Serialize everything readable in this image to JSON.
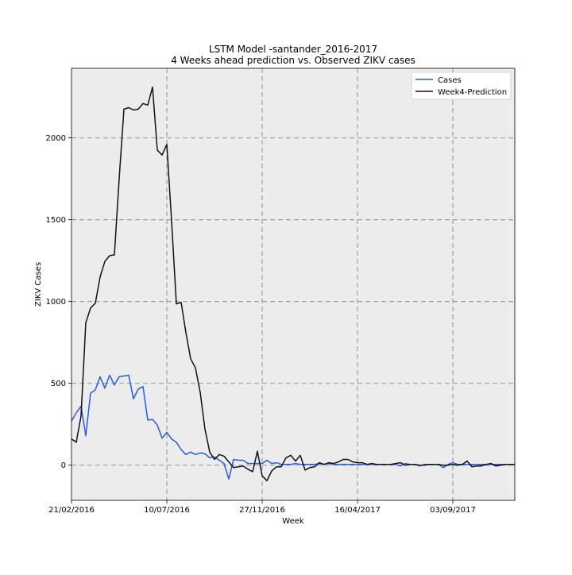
{
  "chart_data": {
    "type": "line",
    "title": "LSTM Model -santander_2016-2017",
    "subtitle": "4 Weeks ahead prediction vs. Observed ZIKV cases",
    "xlabel": "Week",
    "ylabel": "ZIKV Cases",
    "xticks": [
      "21/02/2016",
      "10/07/2016",
      "27/11/2016",
      "16/04/2017",
      "03/09/2017"
    ],
    "yticks": [
      0,
      500,
      1000,
      1500,
      2000
    ],
    "ylim": [
      -215,
      2425
    ],
    "xlim": [
      0,
      93
    ],
    "grid": true,
    "legend_position": "top-right",
    "background": "#ececec",
    "series": [
      {
        "name": "Cases",
        "color": "#1f5ef0",
        "values": [
          270,
          320,
          360,
          180,
          440,
          460,
          540,
          470,
          550,
          490,
          540,
          545,
          550,
          405,
          465,
          480,
          275,
          280,
          245,
          165,
          200,
          160,
          140,
          95,
          65,
          80,
          65,
          75,
          70,
          45,
          50,
          30,
          10,
          -85,
          35,
          30,
          30,
          10,
          10,
          10,
          10,
          30,
          10,
          15,
          5,
          5,
          5,
          10,
          5,
          5,
          5,
          5,
          10,
          5,
          10,
          5,
          5,
          5,
          5,
          5,
          5,
          5,
          5,
          5,
          5,
          5,
          5,
          5,
          5,
          -5,
          10,
          5,
          5,
          -5,
          5,
          5,
          5,
          5,
          -15,
          5,
          15,
          5,
          5,
          5,
          5,
          5,
          5,
          5,
          5,
          5,
          5,
          5,
          5,
          5
        ]
      },
      {
        "name": "Week4-Prediction",
        "color": "#111111",
        "values": [
          160,
          140,
          300,
          870,
          960,
          990,
          1150,
          1245,
          1280,
          1285,
          1750,
          2175,
          2185,
          2170,
          2175,
          2210,
          2200,
          2310,
          1925,
          1895,
          1960,
          1490,
          985,
          995,
          810,
          650,
          595,
          445,
          220,
          80,
          35,
          65,
          55,
          20,
          -15,
          -10,
          -5,
          -25,
          -40,
          85,
          -65,
          -95,
          -35,
          -10,
          -10,
          45,
          60,
          25,
          60,
          -30,
          -15,
          -10,
          15,
          5,
          15,
          10,
          20,
          35,
          35,
          20,
          15,
          15,
          5,
          10,
          5,
          5,
          5,
          5,
          10,
          15,
          0,
          5,
          5,
          0,
          0,
          5,
          5,
          5,
          0,
          0,
          5,
          0,
          5,
          25,
          -10,
          -5,
          -5,
          5,
          10,
          -5,
          0,
          5,
          5,
          5
        ]
      }
    ]
  }
}
